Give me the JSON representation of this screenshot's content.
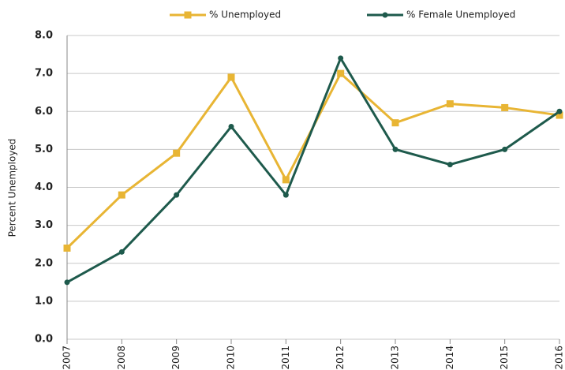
{
  "chart_data": {
    "type": "line",
    "y_label": "Percent Unemployed",
    "categories": [
      "2007",
      "2008",
      "2009",
      "2010",
      "2011",
      "2012",
      "2013",
      "2014",
      "2015",
      "2016"
    ],
    "series": [
      {
        "name": "% Unemployed",
        "color": "#e8b534",
        "marker": "square",
        "values": [
          2.4,
          3.8,
          4.9,
          6.9,
          4.2,
          7.0,
          5.7,
          6.2,
          6.1,
          5.9
        ]
      },
      {
        "name": "% Female Unemployed",
        "color": "#1e5a4c",
        "marker": "circle",
        "values": [
          1.5,
          2.3,
          3.8,
          5.6,
          3.8,
          7.4,
          5.0,
          4.6,
          5.0,
          6.0
        ]
      }
    ],
    "ylim": [
      0,
      8
    ],
    "yticks": [
      {
        "value": 0,
        "label": "0.0"
      },
      {
        "value": 1,
        "label": "1.0"
      },
      {
        "value": 2,
        "label": "2.0"
      },
      {
        "value": 3,
        "label": "3.0"
      },
      {
        "value": 4,
        "label": "4.0"
      },
      {
        "value": 5,
        "label": "5.0"
      },
      {
        "value": 6,
        "label": "6.0"
      },
      {
        "value": 7,
        "label": "7.0"
      },
      {
        "value": 8,
        "label": "8.0"
      }
    ],
    "grid": true,
    "legend": "top"
  }
}
